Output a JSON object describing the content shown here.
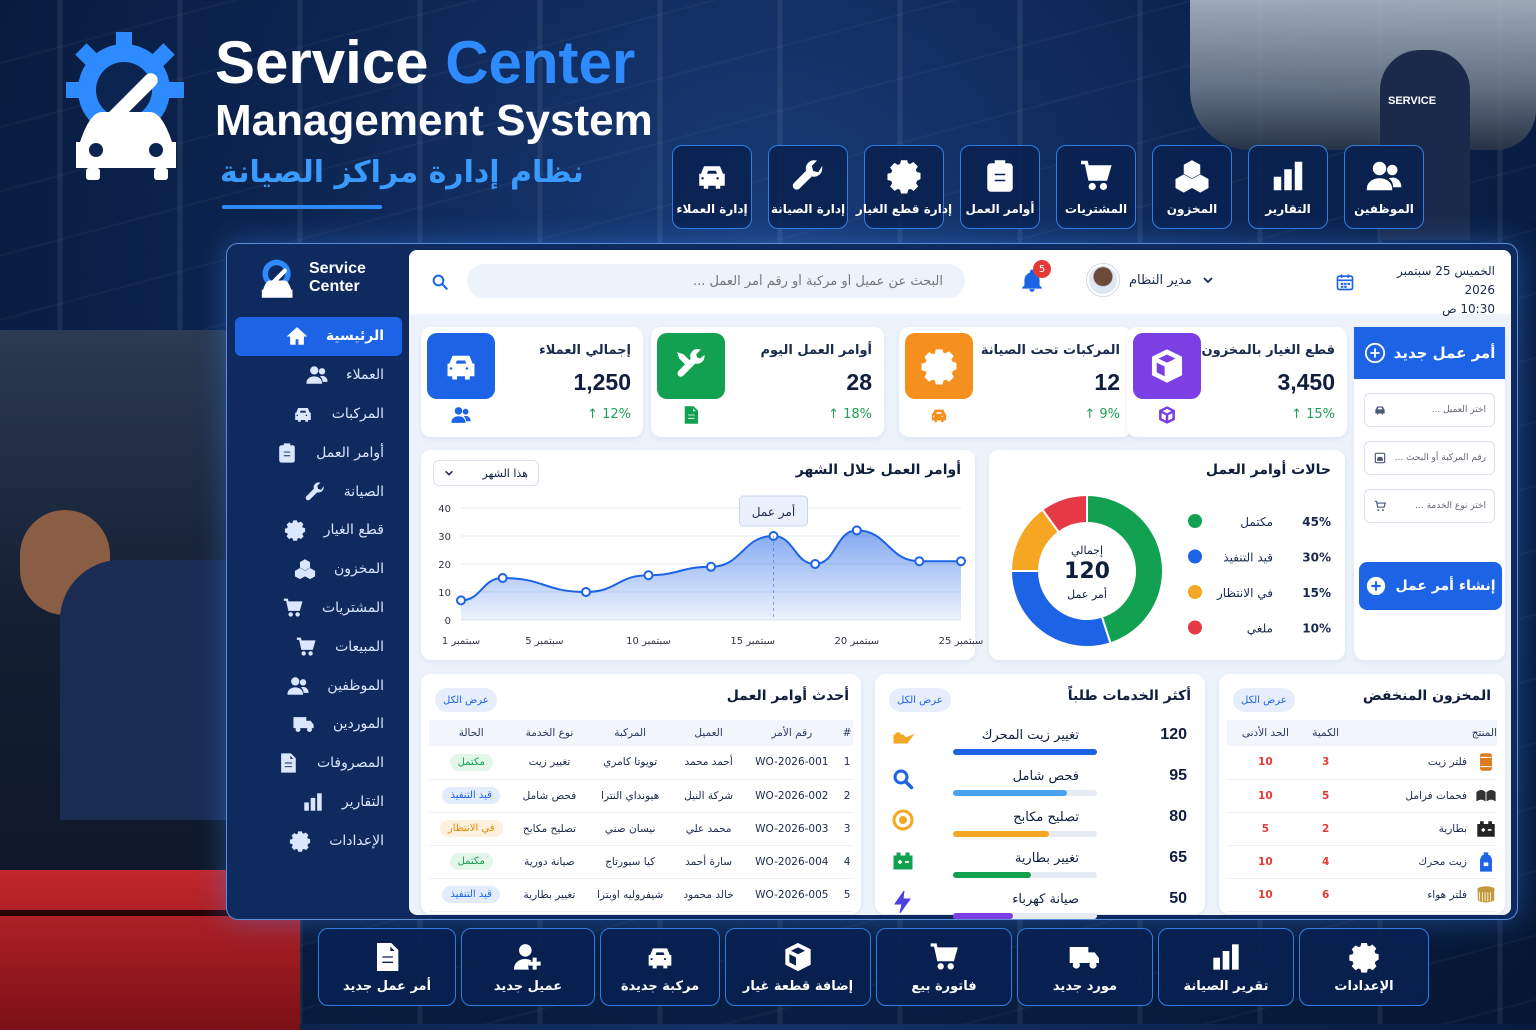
{
  "header": {
    "title_part1": "Service",
    "title_part2": "Center",
    "subtitle": "Management System",
    "title_ar": "نظام إدارة مراكز الصيانة"
  },
  "top_nav": [
    {
      "label": "إدارة العملاء",
      "icon": "car-icon"
    },
    {
      "label": "إدارة الصيانة",
      "icon": "wrench-icon"
    },
    {
      "label": "إدارة قطع الغيار",
      "icon": "gear-icon"
    },
    {
      "label": "أوامر العمل",
      "icon": "clipboard-icon"
    },
    {
      "label": "المشتريات",
      "icon": "cart-icon"
    },
    {
      "label": "المخزون",
      "icon": "boxes-icon"
    },
    {
      "label": "التقارير",
      "icon": "bar-chart-icon"
    },
    {
      "label": "الموظفين",
      "icon": "users-icon"
    }
  ],
  "background": {
    "tech_shirt": "SERVICE"
  },
  "sidebar": {
    "brand_line1": "Service",
    "brand_line2": "Center",
    "items": [
      {
        "label": "الرئيسية",
        "icon": "home-icon",
        "active": true
      },
      {
        "label": "العملاء",
        "icon": "users-icon"
      },
      {
        "label": "المركبات",
        "icon": "car-icon"
      },
      {
        "label": "أوامر العمل",
        "icon": "clipboard-icon"
      },
      {
        "label": "الصيانة",
        "icon": "wrench-icon"
      },
      {
        "label": "قطع الغيار",
        "icon": "gear-icon"
      },
      {
        "label": "المخزون",
        "icon": "boxes-icon"
      },
      {
        "label": "المشتريات",
        "icon": "cart-icon"
      },
      {
        "label": "المبيعات",
        "icon": "cart-icon"
      },
      {
        "label": "الموظفين",
        "icon": "users-icon"
      },
      {
        "label": "الموردين",
        "icon": "truck-icon"
      },
      {
        "label": "المصروفات",
        "icon": "document-icon"
      },
      {
        "label": "التقارير",
        "icon": "bar-chart-icon"
      },
      {
        "label": "الإعدادات",
        "icon": "gear-icon"
      }
    ]
  },
  "topbar": {
    "search_placeholder": "البحث عن عميل أو مركبة أو رقم أمر العمل ...",
    "notifications": "5",
    "user_name": "مدير النظام",
    "date_line1": "الخميس 25 سبتمبر 2026",
    "date_line2": "10:30 ص"
  },
  "stats": [
    {
      "title": "إجمالي العملاء",
      "value": "1,250",
      "change": "↑ 12%",
      "color": "#1d63e6",
      "icon": "car-icon",
      "mini_icon": "users-icon"
    },
    {
      "title": "أوامر العمل اليوم",
      "value": "28",
      "change": "↑ 18%",
      "color": "#12a150",
      "icon": "tools-icon",
      "mini_icon": "document-icon"
    },
    {
      "title": "المركبات تحت الصيانة",
      "value": "12",
      "change": "↑ 9%",
      "color": "#f5901e",
      "icon": "gear-icon",
      "mini_icon": "car-icon"
    },
    {
      "title": "قطع الغيار بالمخزون",
      "value": "3,450",
      "change": "↑ 15%",
      "color": "#7b3fe4",
      "icon": "box-icon",
      "mini_icon": "box-outline-icon"
    }
  ],
  "new_order": {
    "title": "أمر عمل جديد",
    "customer_placeholder": "اختر العميل ...",
    "vehicle_placeholder": "رقم المركبة أو البحث ...",
    "service_placeholder": "اختر نوع الخدمة ...",
    "create_button": "إنشاء أمر عمل"
  },
  "monthly_chart": {
    "title": "أوامر العمل خلال الشهر",
    "period": "هذا الشهر",
    "tooltip": "أمر عمل"
  },
  "chart_data": {
    "type": "area",
    "title": "أوامر العمل خلال الشهر",
    "x_ticks": [
      "1 سبتمبر",
      "5 سبتمبر",
      "10 سبتمبر",
      "15 سبتمبر",
      "20 سبتمبر",
      "25 سبتمبر"
    ],
    "x": [
      1,
      3,
      7,
      10,
      13,
      16,
      18,
      20,
      23,
      25
    ],
    "values": [
      7,
      15,
      10,
      16,
      19,
      30,
      20,
      32,
      21,
      21
    ],
    "ylim": [
      0,
      40
    ],
    "y_ticks": [
      0,
      10,
      20,
      30,
      40
    ],
    "grid": true,
    "color": "#1d63e6"
  },
  "status_chart": {
    "title": "حالات أوامر العمل",
    "center_line1": "إجمالي",
    "center_value": "120",
    "center_line2": "أمر عمل",
    "segments": [
      {
        "label": "مكتمل",
        "pct": "45%",
        "value": 45,
        "color": "#12a150"
      },
      {
        "label": "قيد التنفيذ",
        "pct": "30%",
        "value": 30,
        "color": "#1d63e6"
      },
      {
        "label": "في الانتظار",
        "pct": "15%",
        "value": 15,
        "color": "#f5a623"
      },
      {
        "label": "ملغي",
        "pct": "10%",
        "value": 10,
        "color": "#e53945"
      }
    ]
  },
  "recent_orders": {
    "title": "أحدث أوامر العمل",
    "view_all": "عرض الكل",
    "columns": [
      "#",
      "رقم الأمر",
      "العميل",
      "المركبة",
      "نوع الخدمة",
      "الحالة"
    ],
    "rows": [
      {
        "n": "1",
        "id": "WO-2026-001",
        "customer": "أحمد محمد",
        "vehicle": "تويوتا كامري",
        "service": "تغيير زيت",
        "status": "مكتمل",
        "bg": "#e2f6ea",
        "fg": "#12a150"
      },
      {
        "n": "2",
        "id": "WO-2026-002",
        "customer": "شركة النيل",
        "vehicle": "هيونداي النترا",
        "service": "فحص شامل",
        "status": "قيد التنفيذ",
        "bg": "#e3ecfd",
        "fg": "#1d63e6"
      },
      {
        "n": "3",
        "id": "WO-2026-003",
        "customer": "محمد علي",
        "vehicle": "نيسان صني",
        "service": "تصليح مكابح",
        "status": "في الانتظار",
        "bg": "#fdf0dc",
        "fg": "#e08a00"
      },
      {
        "n": "4",
        "id": "WO-2026-004",
        "customer": "سارة أحمد",
        "vehicle": "كيا سبورتاج",
        "service": "صيانة دورية",
        "status": "مكتمل",
        "bg": "#e2f6ea",
        "fg": "#12a150"
      },
      {
        "n": "5",
        "id": "WO-2026-005",
        "customer": "خالد محمود",
        "vehicle": "شيفروليه اوبترا",
        "service": "تغيير بطارية",
        "status": "قيد التنفيذ",
        "bg": "#e3ecfd",
        "fg": "#1d63e6"
      }
    ]
  },
  "top_services": {
    "title": "أكثر الخدمات طلباً",
    "view_all": "عرض الكل",
    "items": [
      {
        "name": "تغيير زيت المحرك",
        "value": "120",
        "fill": 1.0,
        "color": "#1d63e6",
        "icon": "oil-can-icon",
        "icon_color": "#f5a623"
      },
      {
        "name": "فحص شامل",
        "value": "95",
        "fill": 0.79,
        "color": "#4aa3f0",
        "icon": "magnifier-icon",
        "icon_color": "#1d63e6"
      },
      {
        "name": "تصليح مكابح",
        "value": "80",
        "fill": 0.67,
        "color": "#f5a623",
        "icon": "brake-disc-icon",
        "icon_color": "#f5a623"
      },
      {
        "name": "تغيير بطارية",
        "value": "65",
        "fill": 0.54,
        "color": "#12a150",
        "icon": "battery-icon",
        "icon_color": "#12a150"
      },
      {
        "name": "صيانة كهرباء",
        "value": "50",
        "fill": 0.42,
        "color": "#7b3fe4",
        "icon": "lightning-icon",
        "icon_color": "#4b3fe4"
      }
    ]
  },
  "low_stock": {
    "title": "المخزون المنخفض",
    "view_all": "عرض الكل",
    "columns": [
      "المنتج",
      "الكمية",
      "الحد الأدنى"
    ],
    "rows": [
      {
        "product": "فلتر زيت",
        "qty": "3",
        "min": "10",
        "icon": "oil-filter-icon",
        "icon_color": "#e07a1e"
      },
      {
        "product": "فحمات فرامل",
        "qty": "5",
        "min": "10",
        "icon": "brake-pads-icon",
        "icon_color": "#333"
      },
      {
        "product": "بطارية",
        "qty": "2",
        "min": "5",
        "icon": "battery-icon",
        "icon_color": "#222"
      },
      {
        "product": "زيت محرك",
        "qty": "4",
        "min": "10",
        "icon": "oil-bottle-icon",
        "icon_color": "#1d63e6"
      },
      {
        "product": "فلتر هواء",
        "qty": "6",
        "min": "10",
        "icon": "air-filter-icon",
        "icon_color": "#c49a3c"
      }
    ]
  },
  "bottom_bar": [
    {
      "label": "أمر عمل جديد",
      "icon": "document-icon"
    },
    {
      "label": "عميل جديد",
      "icon": "add-user-icon"
    },
    {
      "label": "مركبة جديدة",
      "icon": "car-icon"
    },
    {
      "label": "إضافة قطعة غيار",
      "icon": "box-icon"
    },
    {
      "label": "فاتورة بيع",
      "icon": "cart-icon"
    },
    {
      "label": "مورد جديد",
      "icon": "truck-icon"
    },
    {
      "label": "تقرير الصيانة",
      "icon": "bar-chart-icon"
    },
    {
      "label": "الإعدادات",
      "icon": "gear-icon"
    }
  ]
}
